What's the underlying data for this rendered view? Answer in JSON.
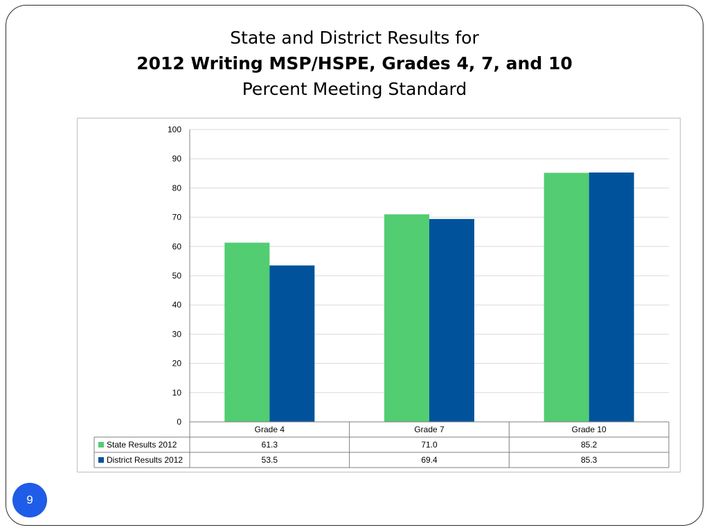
{
  "slide": {
    "title_line1": "State and District Results for",
    "title_line2": "2012 Writing MSP/HSPE, Grades 4, 7, and 10",
    "title_line3": "Percent Meeting Standard",
    "page_number": "9"
  },
  "chart_data": {
    "type": "bar",
    "categories": [
      "Grade 4",
      "Grade 7",
      "Grade 10"
    ],
    "series": [
      {
        "name": "State Results 2012",
        "values": [
          61.3,
          71.0,
          85.2
        ],
        "labels": [
          "61.3",
          "71.0",
          "85.2"
        ],
        "color": "#52cd72"
      },
      {
        "name": "District Results 2012",
        "values": [
          53.5,
          69.4,
          85.3
        ],
        "labels": [
          "53.5",
          "69.4",
          "85.3"
        ],
        "color": "#00539b"
      }
    ],
    "ylim": [
      0,
      100
    ],
    "yticks": [
      0,
      10,
      20,
      30,
      40,
      50,
      60,
      70,
      80,
      90,
      100
    ],
    "grid": true,
    "legend": "data-table-left",
    "data_table": true
  }
}
